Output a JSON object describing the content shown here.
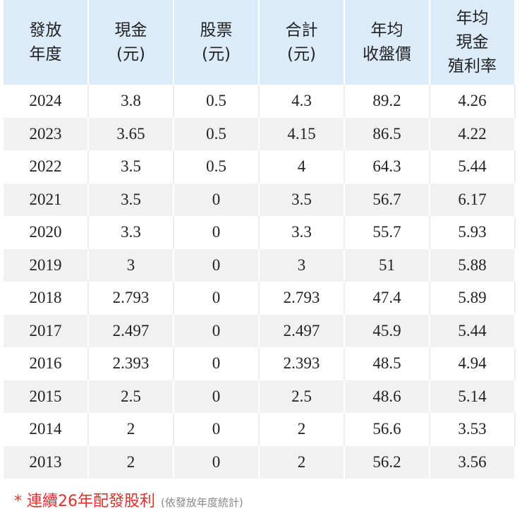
{
  "table": {
    "header": [
      [
        "發放",
        "年度"
      ],
      [
        "現金",
        "(元)"
      ],
      [
        "股票",
        "(元)"
      ],
      [
        "合計",
        "(元)"
      ],
      [
        "年均",
        "收盤價"
      ],
      [
        "年均",
        "現金",
        "殖利率"
      ]
    ],
    "rows": [
      [
        "2024",
        "3.8",
        "0.5",
        "4.3",
        "89.2",
        "4.26"
      ],
      [
        "2023",
        "3.65",
        "0.5",
        "4.15",
        "86.5",
        "4.22"
      ],
      [
        "2022",
        "3.5",
        "0.5",
        "4",
        "64.3",
        "5.44"
      ],
      [
        "2021",
        "3.5",
        "0",
        "3.5",
        "56.7",
        "6.17"
      ],
      [
        "2020",
        "3.3",
        "0",
        "3.3",
        "55.7",
        "5.93"
      ],
      [
        "2019",
        "3",
        "0",
        "3",
        "51",
        "5.88"
      ],
      [
        "2018",
        "2.793",
        "0",
        "2.793",
        "47.4",
        "5.89"
      ],
      [
        "2017",
        "2.497",
        "0",
        "2.497",
        "45.9",
        "5.44"
      ],
      [
        "2016",
        "2.393",
        "0",
        "2.393",
        "48.5",
        "4.94"
      ],
      [
        "2015",
        "2.5",
        "0",
        "2.5",
        "48.6",
        "5.14"
      ],
      [
        "2014",
        "2",
        "0",
        "2",
        "56.6",
        "3.53"
      ],
      [
        "2013",
        "2",
        "0",
        "2",
        "56.2",
        "3.56"
      ]
    ]
  },
  "footnote": {
    "main": "* 連續26年配發股利",
    "note": "(依發放年度統計)"
  }
}
